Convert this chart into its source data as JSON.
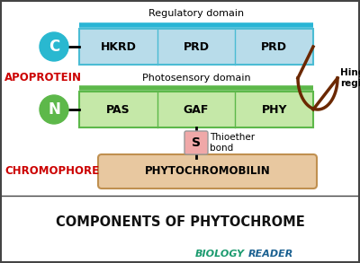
{
  "title": "COMPONENTS OF PHYTOCHROME",
  "reg_domain_label": "Regulatory domain",
  "photo_domain_label": "Photosensory domain",
  "apoprotein_label": "APOPROTEIN",
  "chromophore_label": "CHROMOPHORE",
  "hinge_label": "Hinge\nregion",
  "thioether_label": "Thioether\nbond",
  "C_label": "C",
  "N_label": "N",
  "S_label": "S",
  "reg_boxes": [
    "HKRD",
    "PRD",
    "PRD"
  ],
  "photo_boxes": [
    "PAS",
    "GAF",
    "PHY"
  ],
  "chromophore_box": "PHYTOCHROMOBILIN",
  "biology_text": "BIOLOGY",
  "reader_text": "READER",
  "bg_color": "#ffffff",
  "border_color": "#444444",
  "reg_box_fill": "#b8dcea",
  "reg_box_edge": "#4bbcd4",
  "reg_top_bar": "#29b5d5",
  "photo_box_fill": "#c5e8a8",
  "photo_box_edge": "#5db84a",
  "photo_top_bar": "#5db84a",
  "C_circle_color": "#29b8d0",
  "N_circle_color": "#5db84a",
  "S_box_color": "#f0a8a8",
  "chromophore_fill": "#e8c8a0",
  "chromophore_edge": "#c09050",
  "hinge_arc_color": "#6b2800",
  "apoprotein_color": "#cc0000",
  "chromophore_label_color": "#cc0000",
  "title_color": "#111111",
  "biology_color": "#1a9a6e",
  "reader_color": "#1a6090"
}
